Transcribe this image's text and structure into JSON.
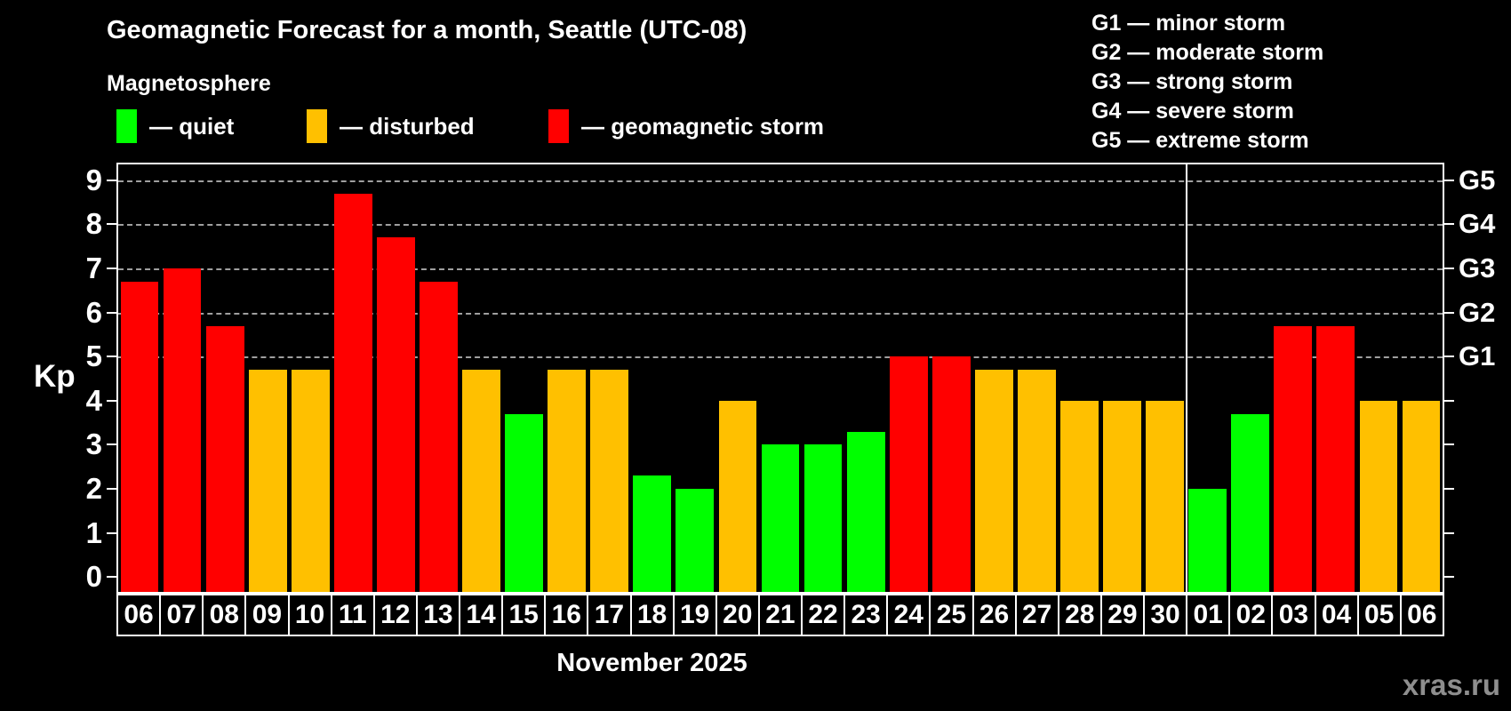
{
  "header": {
    "title": "Geomagnetic Forecast for a month, Seattle (UTC-08)",
    "subtitle": "Magnetosphere",
    "legend": [
      {
        "key": "quiet",
        "label": "— quiet",
        "color": "#00ff00"
      },
      {
        "key": "disturbed",
        "label": "— disturbed",
        "color": "#ffc000"
      },
      {
        "key": "storm",
        "label": "— geomagnetic storm",
        "color": "#ff0000"
      }
    ],
    "g_scale_legend": [
      "G1 — minor storm",
      "G2 — moderate storm",
      "G3 — strong storm",
      "G4 — severe storm",
      "G5 — extreme storm"
    ]
  },
  "chart_data": {
    "type": "bar",
    "title": "Geomagnetic Forecast for a month, Seattle (UTC-08)",
    "ylabel": "Kp",
    "month_label": "November 2025",
    "ylim": [
      0,
      9
    ],
    "yticks": [
      0,
      1,
      2,
      3,
      4,
      5,
      6,
      7,
      8,
      9
    ],
    "gridlines_at": [
      5,
      6,
      7,
      8,
      9
    ],
    "right_axis_labels": [
      {
        "label": "G1",
        "kp": 5
      },
      {
        "label": "G2",
        "kp": 6
      },
      {
        "label": "G3",
        "kp": 7
      },
      {
        "label": "G4",
        "kp": 8
      },
      {
        "label": "G5",
        "kp": 9
      }
    ],
    "categories": [
      "06",
      "07",
      "08",
      "09",
      "10",
      "11",
      "12",
      "13",
      "14",
      "15",
      "16",
      "17",
      "18",
      "19",
      "20",
      "21",
      "22",
      "23",
      "24",
      "25",
      "26",
      "27",
      "28",
      "29",
      "30",
      "01",
      "02",
      "03",
      "04",
      "05",
      "06"
    ],
    "values": [
      6.7,
      7.0,
      5.7,
      4.7,
      4.7,
      8.7,
      7.7,
      6.7,
      4.7,
      3.7,
      4.7,
      4.7,
      2.3,
      2.0,
      4.0,
      3.0,
      3.0,
      3.3,
      5.0,
      5.0,
      4.7,
      4.7,
      4.0,
      4.0,
      4.0,
      2.0,
      3.7,
      5.7,
      5.7,
      4.0,
      4.0
    ],
    "statuses": [
      "storm",
      "storm",
      "storm",
      "disturbed",
      "disturbed",
      "storm",
      "storm",
      "storm",
      "disturbed",
      "quiet",
      "disturbed",
      "disturbed",
      "quiet",
      "quiet",
      "disturbed",
      "quiet",
      "quiet",
      "quiet",
      "storm",
      "storm",
      "disturbed",
      "disturbed",
      "disturbed",
      "disturbed",
      "disturbed",
      "quiet",
      "quiet",
      "storm",
      "storm",
      "disturbed",
      "disturbed"
    ],
    "month_separator_after_index": 24,
    "colors": {
      "quiet": "#00ff00",
      "disturbed": "#ffc000",
      "storm": "#ff0000"
    },
    "legend_position": "top-left",
    "grid": "horizontal-dashed-G-levels-only"
  },
  "watermark": "xras.ru"
}
